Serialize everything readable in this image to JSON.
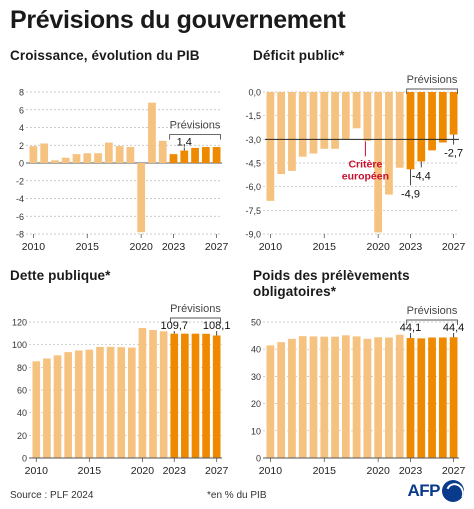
{
  "title": "Prévisions du gouvernement",
  "footer": {
    "source": "Source : PLF 2024",
    "note": "*en % du PIB",
    "logo": "AFP"
  },
  "colors": {
    "past": "#f6c27f",
    "forecast": "#ef8a00",
    "grid": "#b9b9b9",
    "accent": "#c8102e",
    "text": "#1a1a1a"
  },
  "chart_data": [
    {
      "id": "croissance",
      "type": "bar",
      "title": "Croissance, évolution du PIB",
      "x": [
        2010,
        2011,
        2012,
        2013,
        2014,
        2015,
        2016,
        2017,
        2018,
        2019,
        2020,
        2021,
        2022,
        2023,
        2024,
        2025,
        2026,
        2027
      ],
      "values": [
        1.9,
        2.2,
        0.3,
        0.6,
        1.0,
        1.1,
        1.1,
        2.3,
        1.9,
        1.8,
        -7.8,
        6.8,
        2.5,
        1.0,
        1.4,
        1.7,
        1.8,
        1.8
      ],
      "forecast_from": 2023,
      "forecast_label": "Prévisions",
      "ylim": [
        -8,
        8
      ],
      "yticks": [
        -8,
        -6,
        -4,
        -2,
        0,
        2,
        4,
        6,
        8
      ],
      "xticks": [
        2010,
        2015,
        2020,
        2023,
        2027
      ],
      "annotations": [
        {
          "x": 2024,
          "text": "1,4"
        }
      ]
    },
    {
      "id": "deficit",
      "type": "bar",
      "title": "Déficit public*",
      "x": [
        2010,
        2011,
        2012,
        2013,
        2014,
        2015,
        2016,
        2017,
        2018,
        2019,
        2020,
        2021,
        2022,
        2023,
        2024,
        2025,
        2026,
        2027
      ],
      "values": [
        -6.9,
        -5.2,
        -5.0,
        -4.1,
        -3.9,
        -3.6,
        -3.6,
        -3.0,
        -2.3,
        -3.1,
        -8.9,
        -6.5,
        -4.8,
        -4.9,
        -4.4,
        -3.7,
        -3.2,
        -2.7
      ],
      "forecast_from": 2023,
      "forecast_label": "Prévisions",
      "ylim": [
        -9,
        0
      ],
      "yticks": [
        "0,0",
        "-1,5",
        "-3,0",
        "-4,5",
        "-6,0",
        "-7,5",
        "-9,0"
      ],
      "ytick_values": [
        0,
        -1.5,
        -3,
        -4.5,
        -6,
        -7.5,
        -9
      ],
      "xticks": [
        2010,
        2015,
        2020,
        2023,
        2027
      ],
      "reference": {
        "value": -3,
        "label_line1": "Critère",
        "label_line2": "européen"
      },
      "annotations": [
        {
          "x": 2023,
          "text": "-4,9"
        },
        {
          "x": 2024,
          "text": "-4,4"
        },
        {
          "x": 2027,
          "text": "-2,7"
        }
      ]
    },
    {
      "id": "dette",
      "type": "bar",
      "title": "Dette publique*",
      "x": [
        2010,
        2011,
        2012,
        2013,
        2014,
        2015,
        2016,
        2017,
        2018,
        2019,
        2020,
        2021,
        2022,
        2023,
        2024,
        2025,
        2026,
        2027
      ],
      "values": [
        85.3,
        87.8,
        90.6,
        93.4,
        94.9,
        95.6,
        98.0,
        98.1,
        97.8,
        97.4,
        114.7,
        112.9,
        111.8,
        109.7,
        109.7,
        109.7,
        109.6,
        108.1
      ],
      "forecast_from": 2023,
      "forecast_label": "Prévisions",
      "ylim": [
        0,
        120
      ],
      "yticks": [
        0,
        20,
        40,
        60,
        80,
        100,
        120
      ],
      "xticks": [
        2010,
        2015,
        2020,
        2023,
        2027
      ],
      "annotations": [
        {
          "x": 2023,
          "text": "109,7"
        },
        {
          "x": 2027,
          "text": "108,1"
        }
      ]
    },
    {
      "id": "prelevements",
      "type": "bar",
      "title": "Poids des prélèvements obligatoires*",
      "x": [
        2010,
        2011,
        2012,
        2013,
        2014,
        2015,
        2016,
        2017,
        2018,
        2019,
        2020,
        2021,
        2022,
        2023,
        2024,
        2025,
        2026,
        2027
      ],
      "values": [
        41.4,
        42.6,
        43.8,
        44.8,
        44.7,
        44.6,
        44.6,
        45.1,
        44.7,
        43.8,
        44.4,
        44.3,
        45.3,
        44.1,
        44.0,
        44.3,
        44.3,
        44.4
      ],
      "forecast_from": 2023,
      "forecast_label": "Prévisions",
      "ylim": [
        0,
        50
      ],
      "yticks": [
        0,
        10,
        20,
        30,
        40,
        50
      ],
      "xticks": [
        2010,
        2015,
        2020,
        2023,
        2027
      ],
      "annotations": [
        {
          "x": 2023,
          "text": "44,1"
        },
        {
          "x": 2027,
          "text": "44,4"
        }
      ]
    }
  ]
}
